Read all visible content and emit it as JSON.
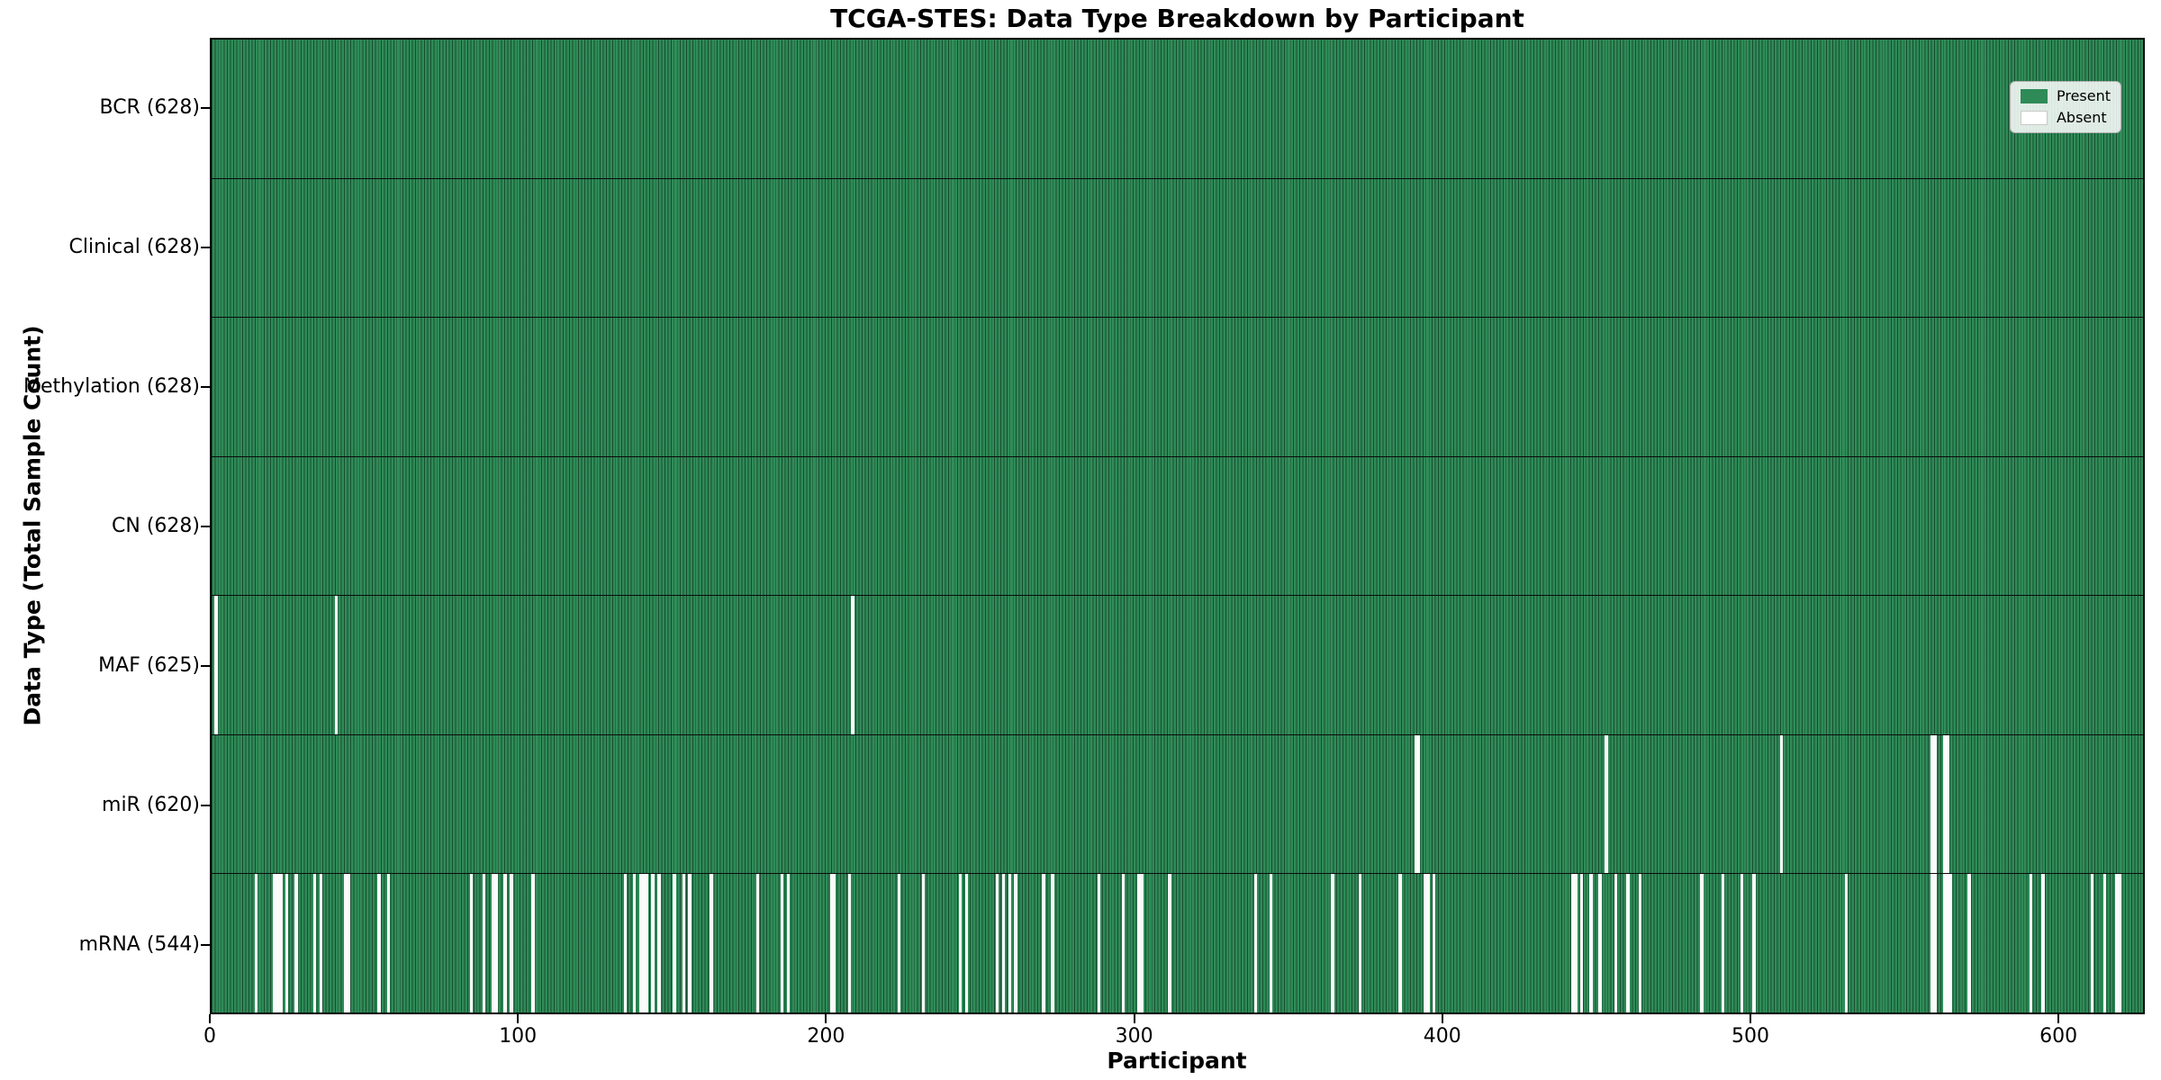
{
  "title": "TCGA-STES: Data Type Breakdown by Participant",
  "colors": {
    "present": "#2e8b57",
    "absent": "#ffffff",
    "bar_edge": "#123c26",
    "row_separator": "#0b0b0b",
    "legend_border": "#b3b3b3"
  },
  "chart_data": {
    "type": "heatmap",
    "title": "TCGA-STES: Data Type Breakdown by Participant",
    "xlabel": "Participant",
    "ylabel": "Data Type (Total Sample Count)",
    "x_range": [
      0,
      628
    ],
    "x_ticks": [
      0,
      100,
      200,
      300,
      400,
      500,
      600
    ],
    "total_participants": 628,
    "grid": false,
    "legend": {
      "position": "upper right",
      "entries": [
        {
          "label": "Present",
          "color": "#2e8b57"
        },
        {
          "label": "Absent",
          "color": "#ffffff"
        }
      ]
    },
    "rows": [
      {
        "name": "BCR",
        "label": "BCR (628)",
        "present_count": 628,
        "absent_participants": []
      },
      {
        "name": "Clinical",
        "label": "Clinical (628)",
        "present_count": 628,
        "absent_participants": []
      },
      {
        "name": "Methylation",
        "label": "Methylation (628)",
        "present_count": 628,
        "absent_participants": []
      },
      {
        "name": "CN",
        "label": "CN (628)",
        "present_count": 628,
        "absent_participants": []
      },
      {
        "name": "MAF",
        "label": "MAF (625)",
        "present_count": 625,
        "absent_participants": [
          1,
          40,
          208
        ]
      },
      {
        "name": "miR",
        "label": "miR (620)",
        "present_count": 620,
        "absent_participants": [
          391,
          392,
          453,
          510,
          559,
          560,
          563,
          564
        ]
      },
      {
        "name": "mRNA",
        "label": "mRNA (544)",
        "present_count": 544,
        "absent_participants": [
          14,
          20,
          21,
          22,
          24,
          27,
          33,
          35,
          43,
          44,
          54,
          57,
          84,
          88,
          91,
          92,
          95,
          97,
          104,
          134,
          137,
          139,
          140,
          141,
          143,
          145,
          150,
          153,
          155,
          162,
          177,
          185,
          187,
          201,
          202,
          207,
          223,
          231,
          243,
          245,
          255,
          257,
          259,
          261,
          270,
          273,
          288,
          296,
          301,
          302,
          311,
          339,
          344,
          364,
          373,
          386,
          394,
          395,
          397,
          442,
          443,
          445,
          448,
          451,
          456,
          460,
          464,
          484,
          491,
          497,
          501,
          531,
          559,
          560,
          563,
          564,
          565,
          571,
          591,
          595,
          611,
          615,
          619,
          620
        ]
      }
    ]
  }
}
